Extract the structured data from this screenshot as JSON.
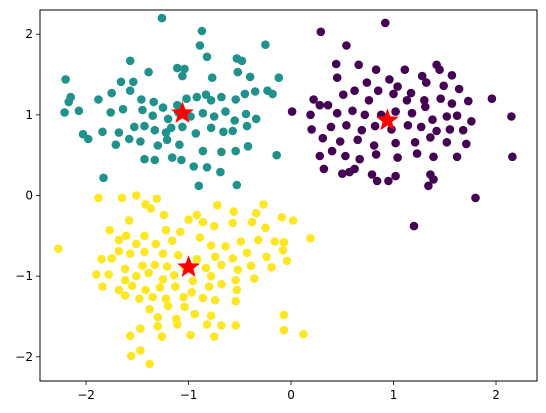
{
  "chart_data": {
    "type": "scatter",
    "title": "",
    "xlabel": "",
    "ylabel": "",
    "xlim": [
      -2.45,
      2.4
    ],
    "ylim": [
      -2.3,
      2.3
    ],
    "xticks": [
      -2,
      -1,
      0,
      1,
      2
    ],
    "yticks": [
      -2,
      -1,
      0,
      1,
      2
    ],
    "grid": false,
    "legend": false,
    "series": [
      {
        "color": "#440154",
        "points": [
          [
            0.29,
            2.03
          ],
          [
            0.54,
            1.86
          ],
          [
            0.92,
            2.14
          ],
          [
            0.44,
            1.63
          ],
          [
            0.66,
            1.62
          ],
          [
            0.83,
            1.56
          ],
          [
            1.11,
            1.56
          ],
          [
            1.45,
            1.56
          ],
          [
            1.57,
            1.49
          ],
          [
            1.42,
            1.62
          ],
          [
            1.28,
            1.48
          ],
          [
            0.45,
            1.46
          ],
          [
            0.74,
            1.4
          ],
          [
            0.96,
            1.44
          ],
          [
            0.62,
            1.3
          ],
          [
            0.85,
            1.3
          ],
          [
            0.51,
            1.25
          ],
          [
            0.76,
            1.18
          ],
          [
            0.22,
            1.19
          ],
          [
            0.36,
            1.12
          ],
          [
            1.04,
            1.35
          ],
          [
            1.17,
            1.27
          ],
          [
            1.32,
            1.4
          ],
          [
            1.49,
            1.36
          ],
          [
            1.64,
            1.32
          ],
          [
            1.0,
            1.26
          ],
          [
            1.13,
            1.18
          ],
          [
            1.3,
            1.18
          ],
          [
            1.46,
            1.2
          ],
          [
            1.57,
            1.14
          ],
          [
            1.73,
            1.17
          ],
          [
            1.96,
            1.2
          ],
          [
            0.01,
            1.04
          ],
          [
            0.19,
            1.0
          ],
          [
            0.28,
            1.12
          ],
          [
            0.45,
            1.02
          ],
          [
            0.6,
            1.05
          ],
          [
            0.72,
            1.0
          ],
          [
            0.88,
            1.0
          ],
          [
            1.02,
            1.04
          ],
          [
            1.18,
            1.02
          ],
          [
            1.31,
            1.1
          ],
          [
            1.38,
            0.94
          ],
          [
            1.52,
            0.98
          ],
          [
            1.62,
            0.99
          ],
          [
            1.76,
            0.92
          ],
          [
            2.15,
            0.98
          ],
          [
            0.2,
            0.82
          ],
          [
            0.39,
            0.85
          ],
          [
            0.54,
            0.87
          ],
          [
            0.69,
            0.81
          ],
          [
            0.82,
            0.86
          ],
          [
            0.98,
            0.82
          ],
          [
            1.14,
            0.87
          ],
          [
            1.27,
            0.85
          ],
          [
            1.42,
            0.8
          ],
          [
            1.55,
            0.82
          ],
          [
            1.68,
            0.81
          ],
          [
            0.31,
            0.71
          ],
          [
            0.48,
            0.67
          ],
          [
            0.65,
            0.69
          ],
          [
            0.81,
            0.62
          ],
          [
            1.02,
            0.65
          ],
          [
            1.21,
            0.66
          ],
          [
            1.36,
            0.72
          ],
          [
            1.52,
            0.66
          ],
          [
            1.71,
            0.64
          ],
          [
            0.28,
            0.49
          ],
          [
            0.4,
            0.55
          ],
          [
            0.53,
            0.49
          ],
          [
            0.67,
            0.45
          ],
          [
            0.83,
            0.51
          ],
          [
            1.04,
            0.47
          ],
          [
            1.23,
            0.52
          ],
          [
            1.39,
            0.48
          ],
          [
            1.62,
            0.48
          ],
          [
            2.16,
            0.48
          ],
          [
            0.32,
            0.33
          ],
          [
            0.5,
            0.27
          ],
          [
            0.57,
            0.29
          ],
          [
            0.62,
            0.33
          ],
          [
            0.79,
            0.26
          ],
          [
            0.84,
            0.18
          ],
          [
            0.95,
            0.18
          ],
          [
            1.02,
            0.24
          ],
          [
            1.36,
            0.26
          ],
          [
            1.39,
            0.2
          ],
          [
            1.34,
            0.12
          ],
          [
            1.8,
            -0.03
          ],
          [
            1.2,
            -0.38
          ]
        ]
      },
      {
        "color": "#21918c",
        "points": [
          [
            -1.26,
            2.2
          ],
          [
            -0.87,
            2.04
          ],
          [
            -0.82,
            1.72
          ],
          [
            -0.89,
            1.86
          ],
          [
            -0.53,
            1.7
          ],
          [
            -0.48,
            1.67
          ],
          [
            -0.25,
            1.87
          ],
          [
            -1.57,
            1.67
          ],
          [
            -2.2,
            1.44
          ],
          [
            -1.66,
            1.41
          ],
          [
            -1.54,
            1.41
          ],
          [
            -1.39,
            1.53
          ],
          [
            -1.11,
            1.58
          ],
          [
            -1.04,
            1.57
          ],
          [
            -1.06,
            1.48
          ],
          [
            -0.77,
            1.46
          ],
          [
            -0.52,
            1.53
          ],
          [
            -0.4,
            1.47
          ],
          [
            -0.12,
            1.46
          ],
          [
            -2.17,
            1.16
          ],
          [
            -2.15,
            1.22
          ],
          [
            -1.88,
            1.19
          ],
          [
            -1.75,
            1.27
          ],
          [
            -1.57,
            1.3
          ],
          [
            -1.46,
            1.19
          ],
          [
            -1.34,
            1.16
          ],
          [
            -1.25,
            1.09
          ],
          [
            -1.11,
            1.12
          ],
          [
            -1.02,
            1.2
          ],
          [
            -0.92,
            1.22
          ],
          [
            -0.83,
            1.25
          ],
          [
            -0.78,
            1.18
          ],
          [
            -0.68,
            1.22
          ],
          [
            -0.54,
            1.19
          ],
          [
            -0.45,
            1.26
          ],
          [
            -0.35,
            1.29
          ],
          [
            -0.23,
            1.3
          ],
          [
            -0.18,
            1.26
          ],
          [
            -2.21,
            1.03
          ],
          [
            -2.07,
            1.05
          ],
          [
            -1.76,
            1.03
          ],
          [
            -1.64,
            1.07
          ],
          [
            -1.45,
            1.06
          ],
          [
            -1.35,
            0.99
          ],
          [
            -1.2,
            0.95
          ],
          [
            -1.1,
            1.03
          ],
          [
            -0.98,
            0.98
          ],
          [
            -0.86,
            1.02
          ],
          [
            -0.75,
            0.98
          ],
          [
            -0.64,
            1.04
          ],
          [
            -0.55,
            0.93
          ],
          [
            -0.44,
            1.01
          ],
          [
            -0.34,
            0.95
          ],
          [
            -2.03,
            0.76
          ],
          [
            -1.98,
            0.7
          ],
          [
            -1.84,
            0.79
          ],
          [
            -1.68,
            0.78
          ],
          [
            -1.53,
            0.85
          ],
          [
            -1.43,
            0.86
          ],
          [
            -1.33,
            0.81
          ],
          [
            -1.22,
            0.78
          ],
          [
            -1.17,
            0.84
          ],
          [
            -1.06,
            0.85
          ],
          [
            -0.93,
            0.77
          ],
          [
            -0.78,
            0.84
          ],
          [
            -0.66,
            0.79
          ],
          [
            -0.57,
            0.8
          ],
          [
            -0.43,
            0.86
          ],
          [
            -1.71,
            0.63
          ],
          [
            -1.58,
            0.7
          ],
          [
            -1.47,
            0.67
          ],
          [
            -1.3,
            0.62
          ],
          [
            -1.21,
            0.69
          ],
          [
            -1.09,
            0.63
          ],
          [
            -0.86,
            0.55
          ],
          [
            -0.68,
            0.54
          ],
          [
            -0.54,
            0.55
          ],
          [
            -0.42,
            0.61
          ],
          [
            -1.43,
            0.45
          ],
          [
            -1.33,
            0.44
          ],
          [
            -1.16,
            0.47
          ],
          [
            -1.07,
            0.44
          ],
          [
            -0.95,
            0.36
          ],
          [
            -0.82,
            0.35
          ],
          [
            -0.69,
            0.29
          ],
          [
            -0.14,
            0.5
          ],
          [
            -0.9,
            0.12
          ],
          [
            -0.53,
            0.13
          ],
          [
            -1.83,
            0.22
          ]
        ]
      },
      {
        "color": "#fde725",
        "points": [
          [
            -1.88,
            -0.03
          ],
          [
            -1.65,
            -0.03
          ],
          [
            -1.51,
            0.0
          ],
          [
            -1.31,
            -0.04
          ],
          [
            -1.42,
            -0.11
          ],
          [
            -1.37,
            -0.16
          ],
          [
            -1.24,
            -0.24
          ],
          [
            -0.92,
            -0.24
          ],
          [
            -0.72,
            -0.12
          ],
          [
            -0.56,
            -0.2
          ],
          [
            -0.27,
            -0.11
          ],
          [
            -0.34,
            -0.22
          ],
          [
            -1.58,
            -0.31
          ],
          [
            -1.77,
            -0.43
          ],
          [
            -1.61,
            -0.5
          ],
          [
            -1.43,
            -0.5
          ],
          [
            -1.22,
            -0.43
          ],
          [
            -1.08,
            -0.45
          ],
          [
            -1.0,
            -0.3
          ],
          [
            -0.86,
            -0.33
          ],
          [
            -0.75,
            -0.38
          ],
          [
            -0.57,
            -0.34
          ],
          [
            -0.38,
            -0.33
          ],
          [
            -0.25,
            -0.4
          ],
          [
            -0.09,
            -0.27
          ],
          [
            0.02,
            -0.31
          ],
          [
            0.19,
            -0.53
          ],
          [
            -1.68,
            -0.55
          ],
          [
            -1.51,
            -0.6
          ],
          [
            -1.32,
            -0.6
          ],
          [
            -1.16,
            -0.56
          ],
          [
            -0.89,
            -0.52
          ],
          [
            -0.78,
            -0.62
          ],
          [
            -0.64,
            -0.63
          ],
          [
            -0.49,
            -0.57
          ],
          [
            -0.32,
            -0.55
          ],
          [
            -0.16,
            -0.57
          ],
          [
            -0.07,
            -0.58
          ],
          [
            -2.27,
            -0.66
          ],
          [
            -1.68,
            -0.69
          ],
          [
            -1.57,
            -0.72
          ],
          [
            -1.43,
            -0.7
          ],
          [
            -1.25,
            -0.72
          ],
          [
            -1.1,
            -0.74
          ],
          [
            -0.92,
            -0.79
          ],
          [
            -0.74,
            -0.76
          ],
          [
            -0.57,
            -0.78
          ],
          [
            -0.43,
            -0.71
          ],
          [
            -0.24,
            -0.76
          ],
          [
            -0.08,
            -0.68
          ],
          [
            -1.85,
            -0.79
          ],
          [
            -1.75,
            -0.78
          ],
          [
            -1.62,
            -0.91
          ],
          [
            -1.45,
            -0.87
          ],
          [
            -1.33,
            -0.86
          ],
          [
            -1.21,
            -0.88
          ],
          [
            -1.03,
            -0.91
          ],
          [
            -0.83,
            -0.9
          ],
          [
            -0.68,
            -0.86
          ],
          [
            -0.52,
            -0.92
          ],
          [
            -0.39,
            -0.87
          ],
          [
            -0.19,
            -0.89
          ],
          [
            -0.04,
            -0.81
          ],
          [
            -1.9,
            -0.98
          ],
          [
            -1.78,
            -0.98
          ],
          [
            -1.62,
            -1.05
          ],
          [
            -1.51,
            -1.0
          ],
          [
            -1.39,
            -0.96
          ],
          [
            -1.25,
            -1.04
          ],
          [
            -1.14,
            -0.99
          ],
          [
            -0.96,
            -1.06
          ],
          [
            -0.78,
            -1.0
          ],
          [
            -0.54,
            -1.05
          ],
          [
            -0.36,
            -1.03
          ],
          [
            -1.84,
            -1.13
          ],
          [
            -1.68,
            -1.17
          ],
          [
            -1.55,
            -1.12
          ],
          [
            -1.42,
            -1.17
          ],
          [
            -1.28,
            -1.14
          ],
          [
            -1.13,
            -1.13
          ],
          [
            -0.97,
            -1.2
          ],
          [
            -0.8,
            -1.13
          ],
          [
            -0.68,
            -1.1
          ],
          [
            -0.53,
            -1.17
          ],
          [
            -1.62,
            -1.24
          ],
          [
            -1.48,
            -1.28
          ],
          [
            -1.35,
            -1.26
          ],
          [
            -1.22,
            -1.28
          ],
          [
            -1.05,
            -1.26
          ],
          [
            -0.86,
            -1.27
          ],
          [
            -1.38,
            -1.41
          ],
          [
            -1.2,
            -1.37
          ],
          [
            -1.04,
            -1.38
          ],
          [
            -0.74,
            -1.3
          ],
          [
            -0.54,
            -1.31
          ],
          [
            -1.3,
            -1.51
          ],
          [
            -1.12,
            -1.53
          ],
          [
            -0.94,
            -1.47
          ],
          [
            -0.78,
            -1.49
          ],
          [
            -0.07,
            -1.48
          ],
          [
            -1.47,
            -1.65
          ],
          [
            -1.3,
            -1.62
          ],
          [
            -1.11,
            -1.6
          ],
          [
            -0.82,
            -1.6
          ],
          [
            -0.68,
            -1.61
          ],
          [
            -0.54,
            -1.61
          ],
          [
            -0.07,
            -1.67
          ],
          [
            -1.57,
            -1.74
          ],
          [
            -1.26,
            -1.75
          ],
          [
            -0.98,
            -1.73
          ],
          [
            -0.75,
            -1.75
          ],
          [
            0.12,
            -1.72
          ],
          [
            -1.47,
            -1.92
          ],
          [
            -1.38,
            -2.09
          ],
          [
            -1.56,
            -1.99
          ]
        ]
      }
    ],
    "centroids": {
      "color": "#ff0000",
      "marker": "star",
      "points": [
        [
          -1.06,
          1.02
        ],
        [
          0.94,
          0.93
        ],
        [
          -1.0,
          -0.89
        ]
      ]
    }
  }
}
